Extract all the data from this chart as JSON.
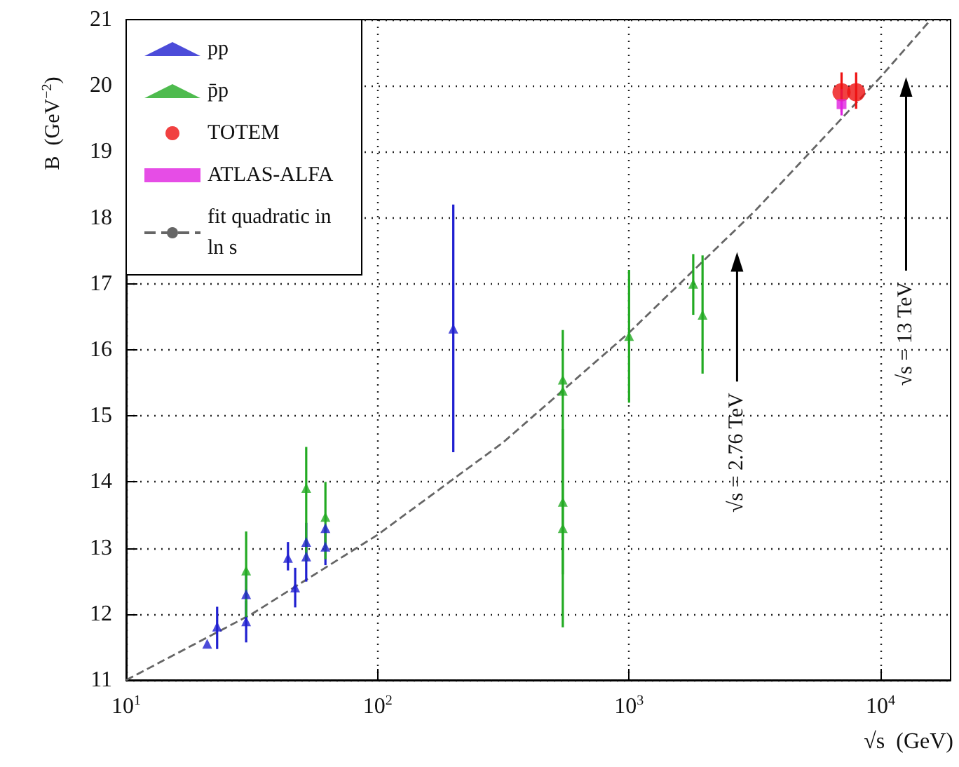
{
  "chart_data": {
    "type": "scatter",
    "xlabel": "√s  (GeV)",
    "ylabel": "B  (GeV$^{−2}$)",
    "log": "x",
    "xlim": [
      10,
      19000
    ],
    "ylim": [
      11,
      21
    ],
    "xticks": [
      {
        "value": 10,
        "label": "10$^{1}$"
      },
      {
        "value": 100,
        "label": "10$^{2}$"
      },
      {
        "value": 1000,
        "label": "10$^{3}$"
      },
      {
        "value": 10000,
        "label": "10$^{4}$"
      }
    ],
    "yticks": [
      11,
      12,
      13,
      14,
      15,
      16,
      17,
      18,
      19,
      20,
      21
    ],
    "grid": true,
    "legend": "top left",
    "series": [
      {
        "name": "pp",
        "marker": "triangle",
        "color": "#1f1fd0",
        "x": [
          21,
          23,
          30,
          30,
          44,
          47,
          52,
          52,
          62,
          62,
          200
        ],
        "values": [
          11.55,
          11.81,
          12.3,
          11.89,
          12.85,
          12.4,
          13.09,
          12.87,
          13.3,
          13.02,
          16.32
        ],
        "errors": [
          null,
          [
            11.47,
            12.11
          ],
          [
            11.9,
            12.6
          ],
          [
            11.57,
            12.2
          ],
          [
            12.66,
            13.09
          ],
          [
            12.1,
            12.7
          ],
          [
            12.8,
            13.38
          ],
          [
            12.49,
            13.1
          ],
          [
            13.0,
            13.34
          ],
          [
            12.74,
            13.3
          ],
          [
            14.45,
            18.2
          ]
        ]
      },
      {
        "name": "p̄p",
        "marker": "triangle",
        "color": "#22aa22",
        "x": [
          30,
          52,
          62,
          545,
          545,
          545,
          545,
          1000,
          1800,
          1960
        ],
        "values": [
          12.66,
          13.91,
          13.47,
          15.55,
          15.38,
          13.7,
          13.3,
          16.21,
          17.0,
          16.53
        ],
        "errors": [
          [
            11.95,
            13.25
          ],
          [
            12.8,
            14.53
          ],
          [
            12.83,
            14.0
          ],
          [
            14.8,
            16.3
          ],
          null,
          [
            12.6,
            14.8
          ],
          [
            11.8,
            14.8
          ],
          [
            15.2,
            17.21
          ],
          [
            16.53,
            17.45
          ],
          [
            15.64,
            17.43
          ]
        ]
      },
      {
        "name": "TOTEM",
        "marker": "circle",
        "color": "#ee1111",
        "x": [
          7000,
          8000
        ],
        "values": [
          19.9,
          19.9
        ],
        "errors": [
          [
            19.6,
            20.2
          ],
          [
            19.65,
            20.2
          ]
        ]
      },
      {
        "name": "ATLAS-ALFA",
        "marker": "square",
        "color": "#e020e0",
        "x": [
          7000
        ],
        "values": [
          19.72
        ],
        "errors": [
          [
            19.55,
            19.95
          ]
        ]
      },
      {
        "name": "fit quadratic in ln s",
        "type": "line",
        "marker": "none",
        "line_style": "dashed",
        "color": "#666666",
        "x": [
          10,
          31.6,
          100,
          316,
          1000,
          3162,
          10000,
          15850
        ],
        "values": [
          11.0,
          12.0,
          13.2,
          14.6,
          16.26,
          18.1,
          20.13,
          21.0
        ]
      }
    ],
    "annotations": [
      "√s = 2.76 TeV",
      "√s = 13 TeV"
    ]
  }
}
